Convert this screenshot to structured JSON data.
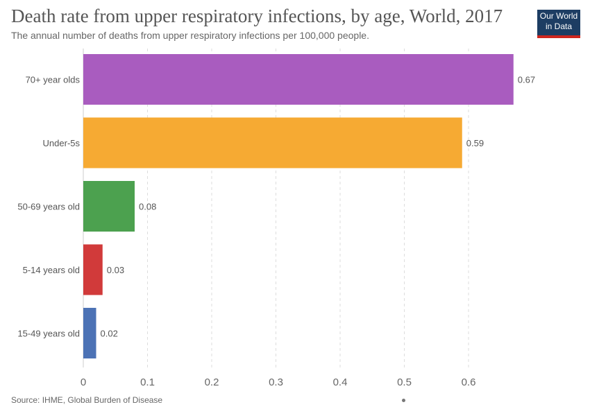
{
  "header": {
    "title": "Death rate from upper respiratory infections, by age, World, 2017",
    "subtitle": "The annual number of deaths from upper respiratory infections per 100,000 people.",
    "logo_line1": "Our World",
    "logo_line2": "in Data"
  },
  "footer": {
    "source": "Source: IHME, Global Burden of Disease"
  },
  "chart_data": {
    "type": "bar",
    "orientation": "horizontal",
    "title": "Death rate from upper respiratory infections, by age, World, 2017",
    "subtitle": "The annual number of deaths from upper respiratory infections per 100,000 people.",
    "categories": [
      "70+ year olds",
      "Under-5s",
      "50-69 years old",
      "5-14 years old",
      "15-49 years old"
    ],
    "values": [
      0.67,
      0.59,
      0.08,
      0.03,
      0.02
    ],
    "value_labels": [
      "0.67",
      "0.59",
      "0.08",
      "0.03",
      "0.02"
    ],
    "colors": [
      "#a95cbf",
      "#f6aa33",
      "#4ca14f",
      "#d13a3a",
      "#4c72b5"
    ],
    "xticks": [
      0,
      0.1,
      0.2,
      0.3,
      0.4,
      0.5,
      0.6
    ],
    "xtick_labels": [
      "0",
      "0.1",
      "0.2",
      "0.3",
      "0.4",
      "0.5",
      "0.6"
    ],
    "xlim": [
      0,
      0.67
    ],
    "grid": "vertical-dashed",
    "legend": "none"
  }
}
